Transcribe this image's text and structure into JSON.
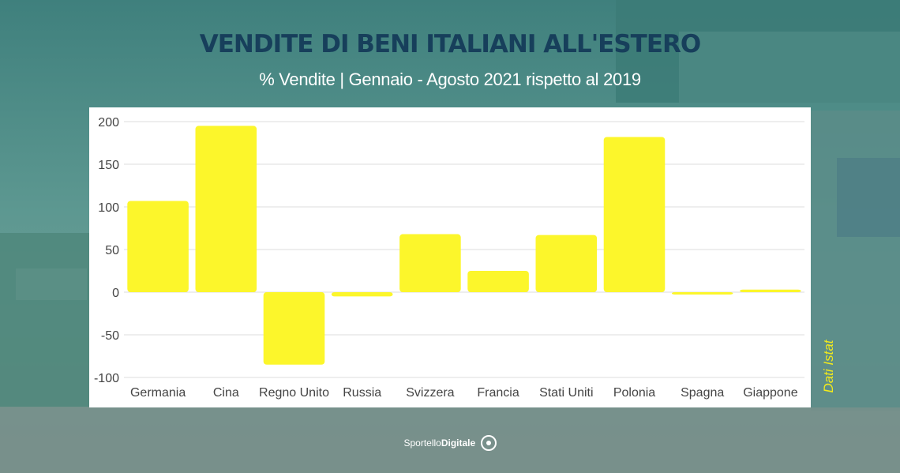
{
  "header": {
    "title": "VENDITE DI BENI ITALIANI ALL'ESTERO",
    "subtitle": "% Vendite  | Gennaio - Agosto 2021 rispetto al 2019"
  },
  "source_note": "Dati Istat",
  "brand": {
    "prefix": "Sportello",
    "name": "Digitale"
  },
  "colors": {
    "bar": "#fcf62b",
    "title": "#173f5b",
    "grid": "#dcdcdc",
    "source": "#f2ea1c"
  },
  "chart_data": {
    "type": "bar",
    "title": "VENDITE DI BENI ITALIANI ALL'ESTERO",
    "subtitle": "% Vendite  | Gennaio - Agosto 2021 rispetto al 2019",
    "xlabel": "",
    "ylabel": "",
    "categories": [
      "Germania",
      "Cina",
      "Regno Unito",
      "Russia",
      "Svizzera",
      "Francia",
      "Stati Uniti",
      "Polonia",
      "Spagna",
      "Giappone"
    ],
    "values": [
      107,
      195,
      -85,
      -5,
      68,
      25,
      67,
      182,
      -2,
      3
    ],
    "ylim": [
      -100,
      200
    ],
    "yticks": [
      200,
      150,
      100,
      50,
      0,
      -50,
      -100
    ],
    "grid": true,
    "legend": "none"
  }
}
